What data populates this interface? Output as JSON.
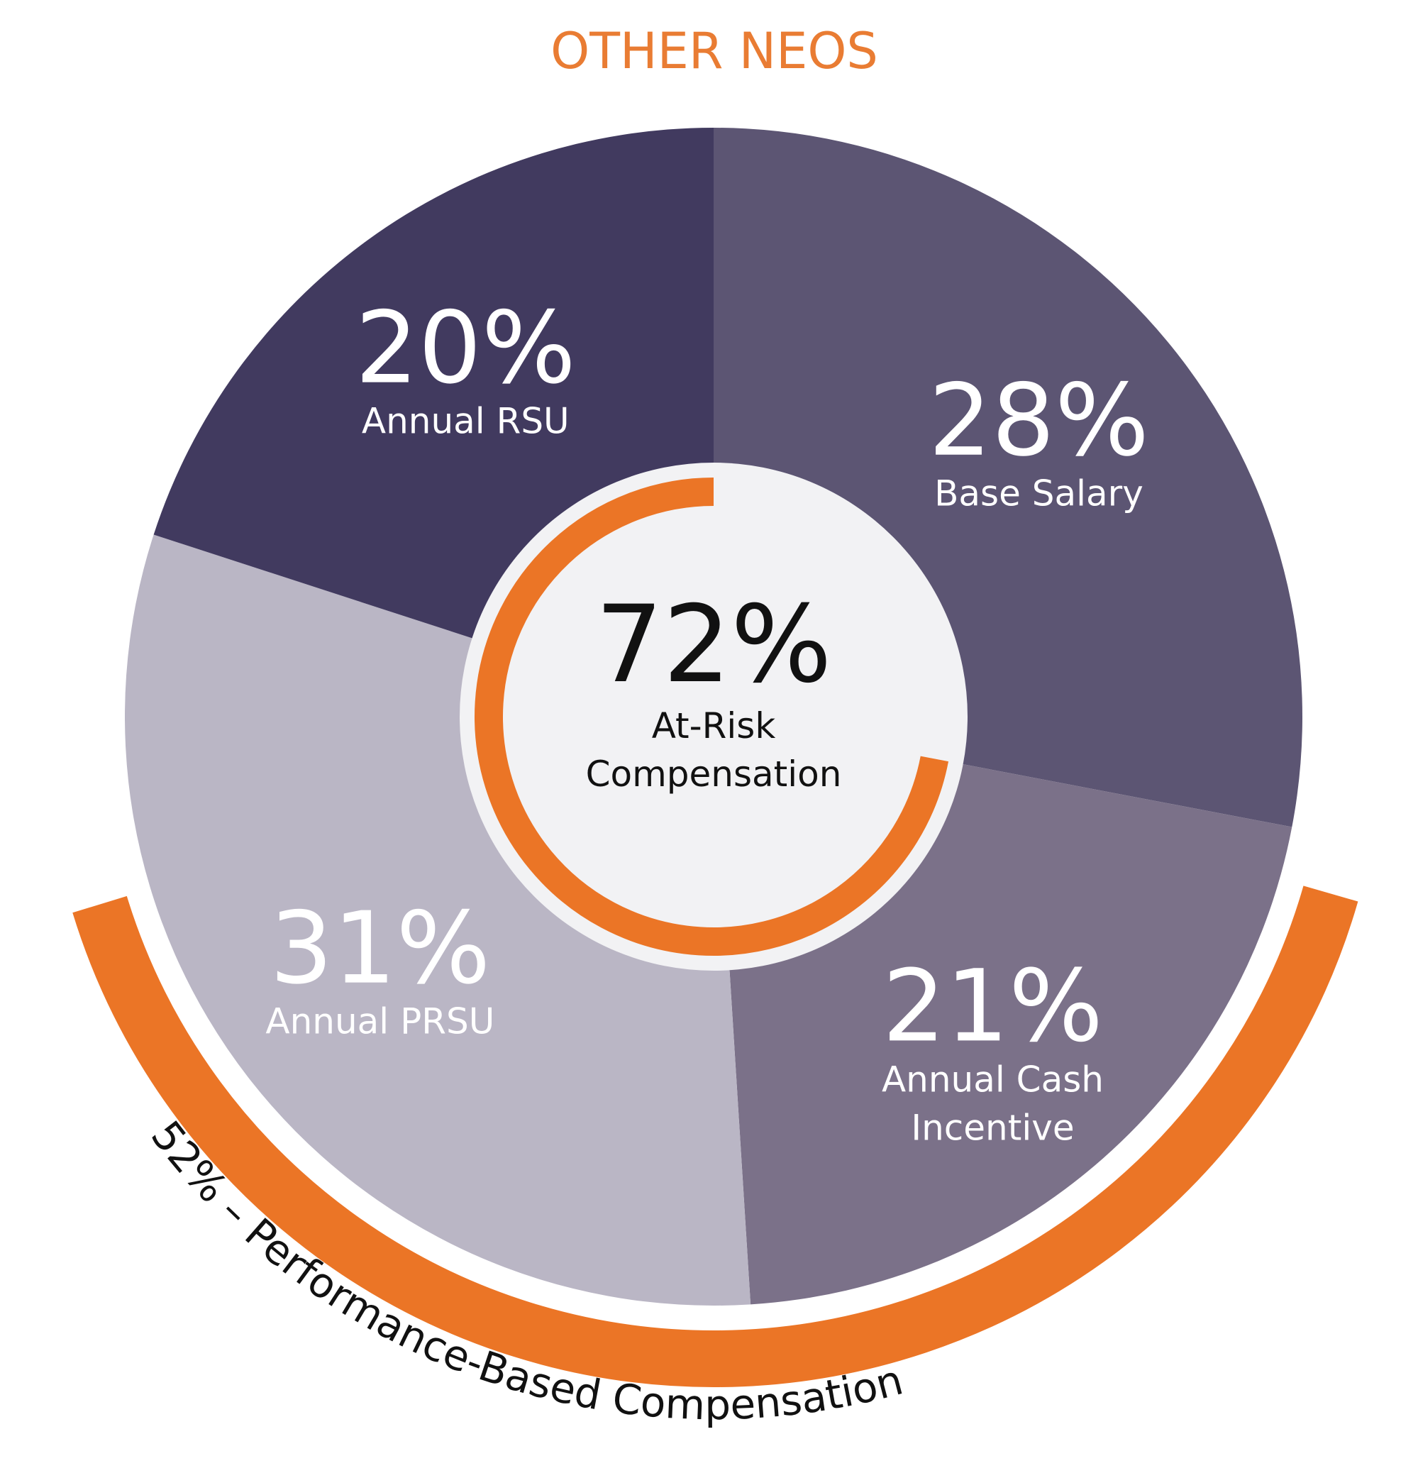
{
  "title": "OTHER NEOS",
  "colors": {
    "title": "#e97c33",
    "accent": "#eb7526",
    "center_fill": "#f2f2f4",
    "slice_label": "#ffffff",
    "center_text": "#111111",
    "arc_text": "#111111"
  },
  "chart_data": {
    "type": "pie",
    "title": "OTHER NEOS",
    "slices": [
      {
        "pct": "28%",
        "value": 28,
        "label": "Base Salary",
        "color": "#5c5573"
      },
      {
        "pct": "21%",
        "value": 21,
        "label": "Annual Cash Incentive",
        "label_lines": [
          "Annual Cash",
          "Incentive"
        ],
        "color": "#7b7189"
      },
      {
        "pct": "31%",
        "value": 31,
        "label": "Annual PRSU",
        "color": "#bab6c5"
      },
      {
        "pct": "20%",
        "value": 20,
        "label": "Annual RSU",
        "color": "#413a5f"
      }
    ],
    "center": {
      "pct": "72%",
      "value": 72,
      "label_lines": [
        "At-Risk",
        "Compensation"
      ]
    },
    "performance_arc": {
      "value": 52,
      "text": "52% – Performance-Based  Compensation"
    }
  }
}
